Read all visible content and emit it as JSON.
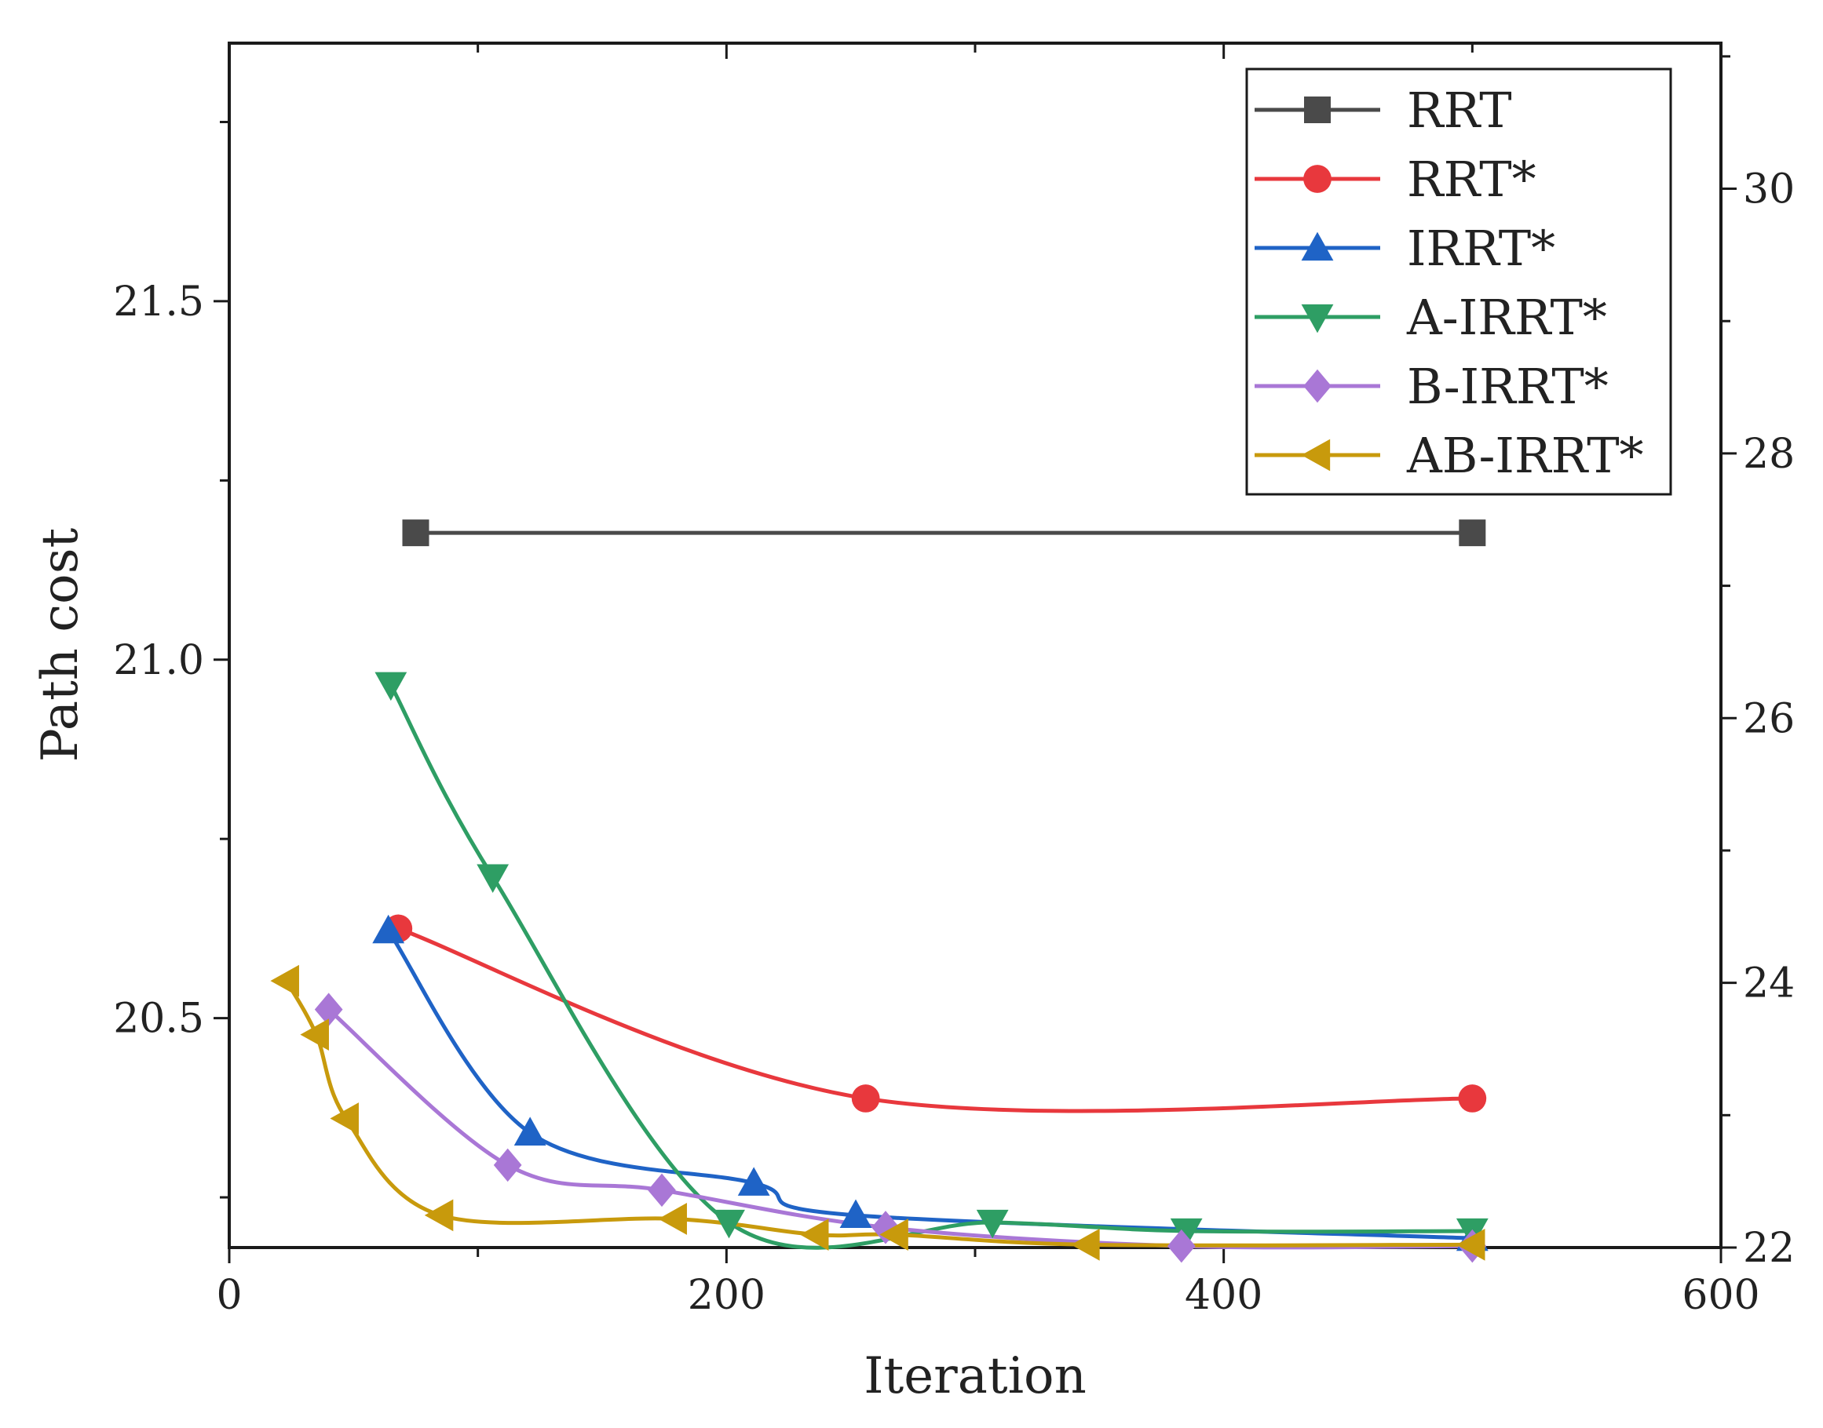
{
  "chart_data": {
    "type": "line",
    "title": "",
    "xlabel": "Iteration",
    "ylabel": "Path cost",
    "xlim": [
      0,
      600
    ],
    "ylim": [
      20.18,
      21.86
    ],
    "y2lim": [
      22,
      31.1
    ],
    "xticks": [
      0,
      200,
      400,
      600
    ],
    "yticks_labeled": [
      20.5,
      21.0,
      21.5
    ],
    "yticks_minor": [
      20.25,
      20.75,
      21.25,
      21.75
    ],
    "y2ticks": [
      22,
      24,
      26,
      28,
      30
    ],
    "y2tick_labels": [
      "22",
      "24",
      "26",
      "28",
      "30"
    ],
    "legend_position": "top-right",
    "series": [
      {
        "name": "RRT",
        "color": "#4a4a4a",
        "marker": "square",
        "axis": "right",
        "x": [
          75,
          500
        ],
        "y": [
          27.4,
          27.4
        ]
      },
      {
        "name": "RRT*",
        "color": "#e8383d",
        "marker": "circle",
        "axis": "left",
        "x": [
          68,
          256,
          500
        ],
        "y": [
          20.625,
          20.388,
          20.388
        ]
      },
      {
        "name": "IRRT*",
        "color": "#1f63c6",
        "marker": "triangle-up",
        "axis": "left",
        "x": [
          64,
          121,
          211,
          252,
          500
        ],
        "y": [
          20.622,
          20.34,
          20.27,
          20.225,
          20.193
        ]
      },
      {
        "name": "A-IRRT*",
        "color": "#2e9e64",
        "marker": "triangle-down",
        "axis": "left",
        "x": [
          65,
          106,
          201,
          307,
          385,
          500
        ],
        "y": [
          20.965,
          20.697,
          20.215,
          20.215,
          20.203,
          20.203
        ]
      },
      {
        "name": "B-IRRT*",
        "color": "#a977d6",
        "marker": "diamond",
        "axis": "left",
        "x": [
          40,
          112,
          174,
          264,
          383,
          500
        ],
        "y": [
          20.512,
          20.295,
          20.26,
          20.208,
          20.182,
          20.182
        ]
      },
      {
        "name": "AB-IRRT*",
        "color": "#c89a0c",
        "marker": "triangle-left",
        "axis": "left",
        "x": [
          23,
          35,
          47,
          85,
          179,
          236,
          268,
          345,
          500
        ],
        "y": [
          20.552,
          20.477,
          20.36,
          20.225,
          20.22,
          20.198,
          20.198,
          20.184,
          20.184
        ]
      }
    ]
  }
}
